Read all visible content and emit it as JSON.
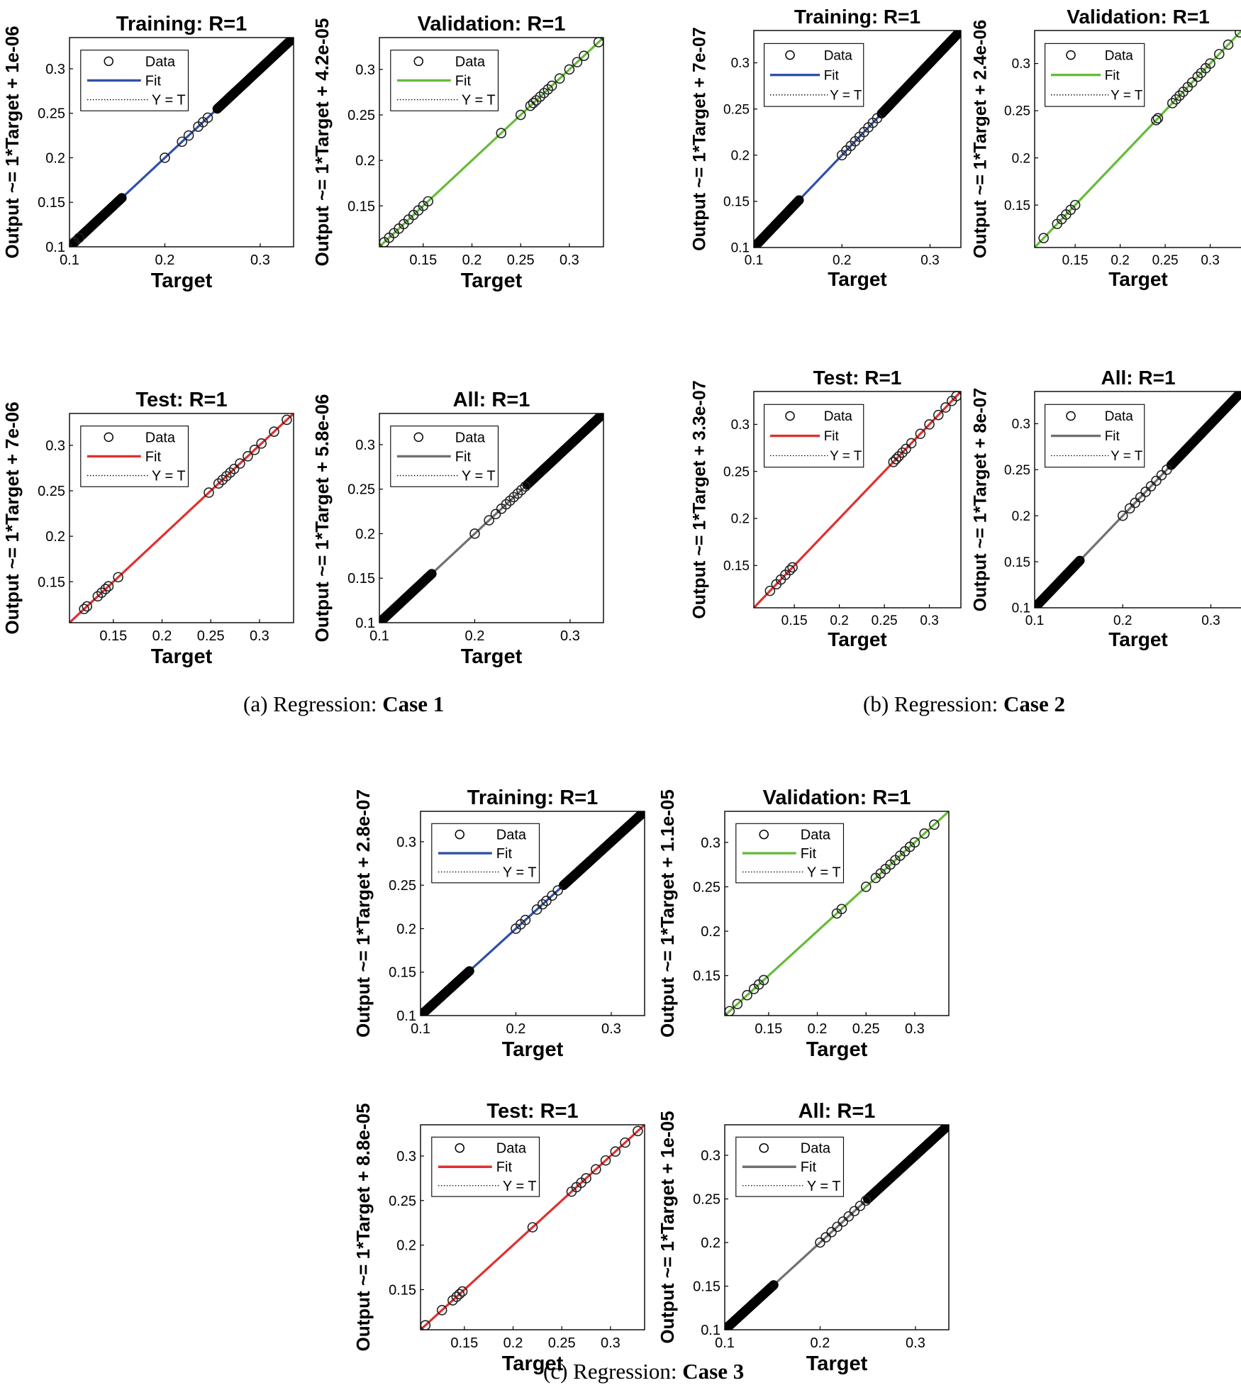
{
  "legend_labels": {
    "data": "Data",
    "fit": "Fit",
    "yt": "Y = T"
  },
  "axis_xlabel": "Target",
  "cases": [
    {
      "caption_prefix": "(a)  Regression: ",
      "caption_bold": "Case 1",
      "charts": [
        {
          "title": "Training: R=1",
          "ylabel": "Output ~= 1*Target + 1e-06",
          "fit_color": "#3050a8",
          "xlim": [
            0.1,
            0.335
          ],
          "ylim": [
            0.1,
            0.335
          ],
          "xticks": [
            "0.1",
            "0.2",
            "0.3"
          ],
          "yticks": [
            "0.1",
            "0.15",
            "0.2",
            "0.25",
            "0.3"
          ],
          "dense_ranges": [
            [
              0.1,
              0.155
            ],
            [
              0.255,
              0.335
            ]
          ],
          "points": [
            0.105,
            0.11,
            0.2,
            0.218,
            0.225,
            0.235,
            0.24,
            0.245
          ]
        },
        {
          "title": "Validation: R=1",
          "ylabel": "Output ~= 1*Target + 4.2e-05",
          "fit_color": "#66bb3a",
          "xlim": [
            0.105,
            0.335
          ],
          "ylim": [
            0.105,
            0.335
          ],
          "xticks": [
            "0.15",
            "0.2",
            "0.25",
            "0.3"
          ],
          "yticks": [
            "0.15",
            "0.2",
            "0.25",
            "0.3"
          ],
          "dense_ranges": [],
          "points": [
            0.11,
            0.115,
            0.12,
            0.125,
            0.13,
            0.135,
            0.14,
            0.145,
            0.15,
            0.155,
            0.23,
            0.25,
            0.26,
            0.263,
            0.266,
            0.27,
            0.274,
            0.278,
            0.282,
            0.29,
            0.3,
            0.308,
            0.315,
            0.33
          ]
        },
        {
          "title": "Test: R=1",
          "ylabel": "Output ~= 1*Target + 7e-06",
          "fit_color": "#e03030",
          "xlim": [
            0.105,
            0.335
          ],
          "ylim": [
            0.105,
            0.335
          ],
          "xticks": [
            "0.15",
            "0.2",
            "0.25",
            "0.3"
          ],
          "yticks": [
            "0.15",
            "0.2",
            "0.25",
            "0.3"
          ],
          "dense_ranges": [],
          "points": [
            0.12,
            0.123,
            0.134,
            0.138,
            0.142,
            0.145,
            0.155,
            0.248,
            0.258,
            0.262,
            0.266,
            0.27,
            0.274,
            0.28,
            0.288,
            0.295,
            0.302,
            0.315,
            0.328
          ]
        },
        {
          "title": "All: R=1",
          "ylabel": "Output ~= 1*Target + 5.8e-06",
          "fit_color": "#707070",
          "xlim": [
            0.1,
            0.335
          ],
          "ylim": [
            0.1,
            0.335
          ],
          "xticks": [
            "0.1",
            "0.2",
            "0.3"
          ],
          "yticks": [
            "0.1",
            "0.15",
            "0.2",
            "0.25",
            "0.3"
          ],
          "dense_ranges": [
            [
              0.1,
              0.155
            ],
            [
              0.255,
              0.335
            ]
          ],
          "points": [
            0.2,
            0.215,
            0.222,
            0.228,
            0.233,
            0.237,
            0.241,
            0.245,
            0.249,
            0.253
          ]
        }
      ]
    },
    {
      "caption_prefix": "(b)  Regression: ",
      "caption_bold": "Case 2",
      "charts": [
        {
          "title": "Training: R=1",
          "ylabel": "Output ~= 1*Target + 7e-07",
          "fit_color": "#3050a8",
          "xlim": [
            0.1,
            0.335
          ],
          "ylim": [
            0.1,
            0.335
          ],
          "xticks": [
            "0.1",
            "0.2",
            "0.3"
          ],
          "yticks": [
            "0.1",
            "0.15",
            "0.2",
            "0.25",
            "0.3"
          ],
          "dense_ranges": [
            [
              0.1,
              0.152
            ],
            [
              0.245,
              0.335
            ]
          ],
          "points": [
            0.2,
            0.205,
            0.21,
            0.215,
            0.22,
            0.225,
            0.23,
            0.235,
            0.24
          ]
        },
        {
          "title": "Validation: R=1",
          "ylabel": "Output ~= 1*Target + 2.4e-06",
          "fit_color": "#66bb3a",
          "xlim": [
            0.105,
            0.335
          ],
          "ylim": [
            0.105,
            0.335
          ],
          "xticks": [
            "0.15",
            "0.2",
            "0.25",
            "0.3"
          ],
          "yticks": [
            "0.15",
            "0.2",
            "0.25",
            "0.3"
          ],
          "dense_ranges": [],
          "points": [
            0.115,
            0.13,
            0.135,
            0.14,
            0.145,
            0.15,
            0.24,
            0.242,
            0.258,
            0.262,
            0.266,
            0.27,
            0.275,
            0.28,
            0.286,
            0.29,
            0.295,
            0.3,
            0.31,
            0.32,
            0.333
          ]
        },
        {
          "title": "Test: R=1",
          "ylabel": "Output ~= 1*Target + 3.3e-07",
          "fit_color": "#e03030",
          "xlim": [
            0.105,
            0.335
          ],
          "ylim": [
            0.105,
            0.335
          ],
          "xticks": [
            "0.15",
            "0.2",
            "0.25",
            "0.3"
          ],
          "yticks": [
            "0.15",
            "0.2",
            "0.25",
            "0.3"
          ],
          "dense_ranges": [],
          "points": [
            0.123,
            0.13,
            0.135,
            0.14,
            0.145,
            0.148,
            0.26,
            0.263,
            0.266,
            0.27,
            0.274,
            0.28,
            0.29,
            0.3,
            0.31,
            0.318,
            0.325,
            0.33
          ]
        },
        {
          "title": "All: R=1",
          "ylabel": "Output ~= 1*Target + 8e-07",
          "fit_color": "#707070",
          "xlim": [
            0.1,
            0.335
          ],
          "ylim": [
            0.1,
            0.335
          ],
          "xticks": [
            "0.1",
            "0.2",
            "0.3"
          ],
          "yticks": [
            "0.1",
            "0.15",
            "0.2",
            "0.25",
            "0.3"
          ],
          "dense_ranges": [
            [
              0.1,
              0.152
            ],
            [
              0.255,
              0.335
            ]
          ],
          "points": [
            0.2,
            0.208,
            0.214,
            0.22,
            0.226,
            0.232,
            0.238,
            0.244,
            0.25
          ]
        }
      ]
    },
    {
      "caption_prefix": "(c)  Regression: ",
      "caption_bold": "Case 3",
      "charts": [
        {
          "title": "Training: R=1",
          "ylabel": "Output ~= 1*Target + 2.8e-07",
          "fit_color": "#3050a8",
          "xlim": [
            0.1,
            0.335
          ],
          "ylim": [
            0.1,
            0.335
          ],
          "xticks": [
            "0.1",
            "0.2",
            "0.3"
          ],
          "yticks": [
            "0.1",
            "0.15",
            "0.2",
            "0.25",
            "0.3"
          ],
          "dense_ranges": [
            [
              0.1,
              0.152
            ],
            [
              0.25,
              0.335
            ]
          ],
          "points": [
            0.2,
            0.205,
            0.21,
            0.222,
            0.228,
            0.232,
            0.238,
            0.244
          ]
        },
        {
          "title": "Validation: R=1",
          "ylabel": "Output ~= 1*Target + 1.1e-05",
          "fit_color": "#66bb3a",
          "xlim": [
            0.105,
            0.335
          ],
          "ylim": [
            0.105,
            0.335
          ],
          "xticks": [
            "0.15",
            "0.2",
            "0.25",
            "0.3"
          ],
          "yticks": [
            "0.15",
            "0.2",
            "0.25",
            "0.3"
          ],
          "dense_ranges": [],
          "points": [
            0.11,
            0.118,
            0.128,
            0.135,
            0.14,
            0.145,
            0.22,
            0.225,
            0.25,
            0.26,
            0.265,
            0.27,
            0.275,
            0.28,
            0.285,
            0.29,
            0.295,
            0.3,
            0.31,
            0.32
          ]
        },
        {
          "title": "Test: R=1",
          "ylabel": "Output ~= 1*Target + 8.8e-05",
          "fit_color": "#e03030",
          "xlim": [
            0.105,
            0.335
          ],
          "ylim": [
            0.105,
            0.335
          ],
          "xticks": [
            "0.15",
            "0.2",
            "0.25",
            "0.3"
          ],
          "yticks": [
            "0.15",
            "0.2",
            "0.25",
            "0.3"
          ],
          "dense_ranges": [],
          "points": [
            0.11,
            0.127,
            0.138,
            0.142,
            0.145,
            0.148,
            0.22,
            0.26,
            0.265,
            0.27,
            0.275,
            0.285,
            0.295,
            0.305,
            0.315,
            0.328
          ]
        },
        {
          "title": "All: R=1",
          "ylabel": "Output ~= 1*Target + 1e-05",
          "fit_color": "#707070",
          "xlim": [
            0.1,
            0.335
          ],
          "ylim": [
            0.1,
            0.335
          ],
          "xticks": [
            "0.1",
            "0.2",
            "0.3"
          ],
          "yticks": [
            "0.1",
            "0.15",
            "0.2",
            "0.25",
            "0.3"
          ],
          "dense_ranges": [
            [
              0.1,
              0.152
            ],
            [
              0.25,
              0.335
            ]
          ],
          "points": [
            0.2,
            0.206,
            0.212,
            0.218,
            0.224,
            0.23,
            0.236,
            0.242,
            0.248
          ]
        }
      ]
    }
  ],
  "chart_data": [
    {
      "type": "scatter",
      "case": "Case 1",
      "title": "Training: R=1",
      "xlabel": "Target",
      "ylabel": "Output ~= 1*Target + 1e-06",
      "xlim": [
        0.1,
        0.335
      ],
      "ylim": [
        0.1,
        0.335
      ],
      "series": [
        {
          "name": "Data"
        },
        {
          "name": "Fit",
          "slope": 1,
          "intercept": 1e-06
        },
        {
          "name": "Y = T"
        }
      ]
    },
    {
      "type": "scatter",
      "case": "Case 1",
      "title": "Validation: R=1",
      "xlabel": "Target",
      "ylabel": "Output ~= 1*Target + 4.2e-05",
      "xlim": [
        0.105,
        0.335
      ],
      "ylim": [
        0.105,
        0.335
      ],
      "series": [
        {
          "name": "Data"
        },
        {
          "name": "Fit",
          "slope": 1,
          "intercept": 4.2e-05
        },
        {
          "name": "Y = T"
        }
      ]
    },
    {
      "type": "scatter",
      "case": "Case 1",
      "title": "Test: R=1",
      "xlabel": "Target",
      "ylabel": "Output ~= 1*Target + 7e-06",
      "xlim": [
        0.105,
        0.335
      ],
      "ylim": [
        0.105,
        0.335
      ],
      "series": [
        {
          "name": "Data"
        },
        {
          "name": "Fit",
          "slope": 1,
          "intercept": 7e-06
        },
        {
          "name": "Y = T"
        }
      ]
    },
    {
      "type": "scatter",
      "case": "Case 1",
      "title": "All: R=1",
      "xlabel": "Target",
      "ylabel": "Output ~= 1*Target + 5.8e-06",
      "xlim": [
        0.1,
        0.335
      ],
      "ylim": [
        0.1,
        0.335
      ],
      "series": [
        {
          "name": "Data"
        },
        {
          "name": "Fit",
          "slope": 1,
          "intercept": 5.8e-06
        },
        {
          "name": "Y = T"
        }
      ]
    },
    {
      "type": "scatter",
      "case": "Case 2",
      "title": "Training: R=1",
      "xlabel": "Target",
      "ylabel": "Output ~= 1*Target + 7e-07",
      "xlim": [
        0.1,
        0.335
      ],
      "ylim": [
        0.1,
        0.335
      ],
      "series": [
        {
          "name": "Data"
        },
        {
          "name": "Fit",
          "slope": 1,
          "intercept": 7e-07
        },
        {
          "name": "Y = T"
        }
      ]
    },
    {
      "type": "scatter",
      "case": "Case 2",
      "title": "Validation: R=1",
      "xlabel": "Target",
      "ylabel": "Output ~= 1*Target + 2.4e-06",
      "xlim": [
        0.105,
        0.335
      ],
      "ylim": [
        0.105,
        0.335
      ],
      "series": [
        {
          "name": "Data"
        },
        {
          "name": "Fit",
          "slope": 1,
          "intercept": 2.4e-06
        },
        {
          "name": "Y = T"
        }
      ]
    },
    {
      "type": "scatter",
      "case": "Case 2",
      "title": "Test: R=1",
      "xlabel": "Target",
      "ylabel": "Output ~= 1*Target + 3.3e-07",
      "xlim": [
        0.105,
        0.335
      ],
      "ylim": [
        0.105,
        0.335
      ],
      "series": [
        {
          "name": "Data"
        },
        {
          "name": "Fit",
          "slope": 1,
          "intercept": 3.3e-07
        },
        {
          "name": "Y = T"
        }
      ]
    },
    {
      "type": "scatter",
      "case": "Case 2",
      "title": "All: R=1",
      "xlabel": "Target",
      "ylabel": "Output ~= 1*Target + 8e-07",
      "xlim": [
        0.1,
        0.335
      ],
      "ylim": [
        0.1,
        0.335
      ],
      "series": [
        {
          "name": "Data"
        },
        {
          "name": "Fit",
          "slope": 1,
          "intercept": 8e-07
        },
        {
          "name": "Y = T"
        }
      ]
    },
    {
      "type": "scatter",
      "case": "Case 3",
      "title": "Training: R=1",
      "xlabel": "Target",
      "ylabel": "Output ~= 1*Target + 2.8e-07",
      "xlim": [
        0.1,
        0.335
      ],
      "ylim": [
        0.1,
        0.335
      ],
      "series": [
        {
          "name": "Data"
        },
        {
          "name": "Fit",
          "slope": 1,
          "intercept": 2.8e-07
        },
        {
          "name": "Y = T"
        }
      ]
    },
    {
      "type": "scatter",
      "case": "Case 3",
      "title": "Validation: R=1",
      "xlabel": "Target",
      "ylabel": "Output ~= 1*Target + 1.1e-05",
      "xlim": [
        0.105,
        0.335
      ],
      "ylim": [
        0.105,
        0.335
      ],
      "series": [
        {
          "name": "Data"
        },
        {
          "name": "Fit",
          "slope": 1,
          "intercept": 1.1e-05
        },
        {
          "name": "Y = T"
        }
      ]
    },
    {
      "type": "scatter",
      "case": "Case 3",
      "title": "Test: R=1",
      "xlabel": "Target",
      "ylabel": "Output ~= 1*Target + 8.8e-05",
      "xlim": [
        0.105,
        0.335
      ],
      "ylim": [
        0.105,
        0.335
      ],
      "series": [
        {
          "name": "Data"
        },
        {
          "name": "Fit",
          "slope": 1,
          "intercept": 8.8e-05
        },
        {
          "name": "Y = T"
        }
      ]
    },
    {
      "type": "scatter",
      "case": "Case 3",
      "title": "All: R=1",
      "xlabel": "Target",
      "ylabel": "Output ~= 1*Target + 1e-05",
      "xlim": [
        0.1,
        0.335
      ],
      "ylim": [
        0.1,
        0.335
      ],
      "series": [
        {
          "name": "Data"
        },
        {
          "name": "Fit",
          "slope": 1,
          "intercept": 1e-05
        },
        {
          "name": "Y = T"
        }
      ]
    }
  ]
}
